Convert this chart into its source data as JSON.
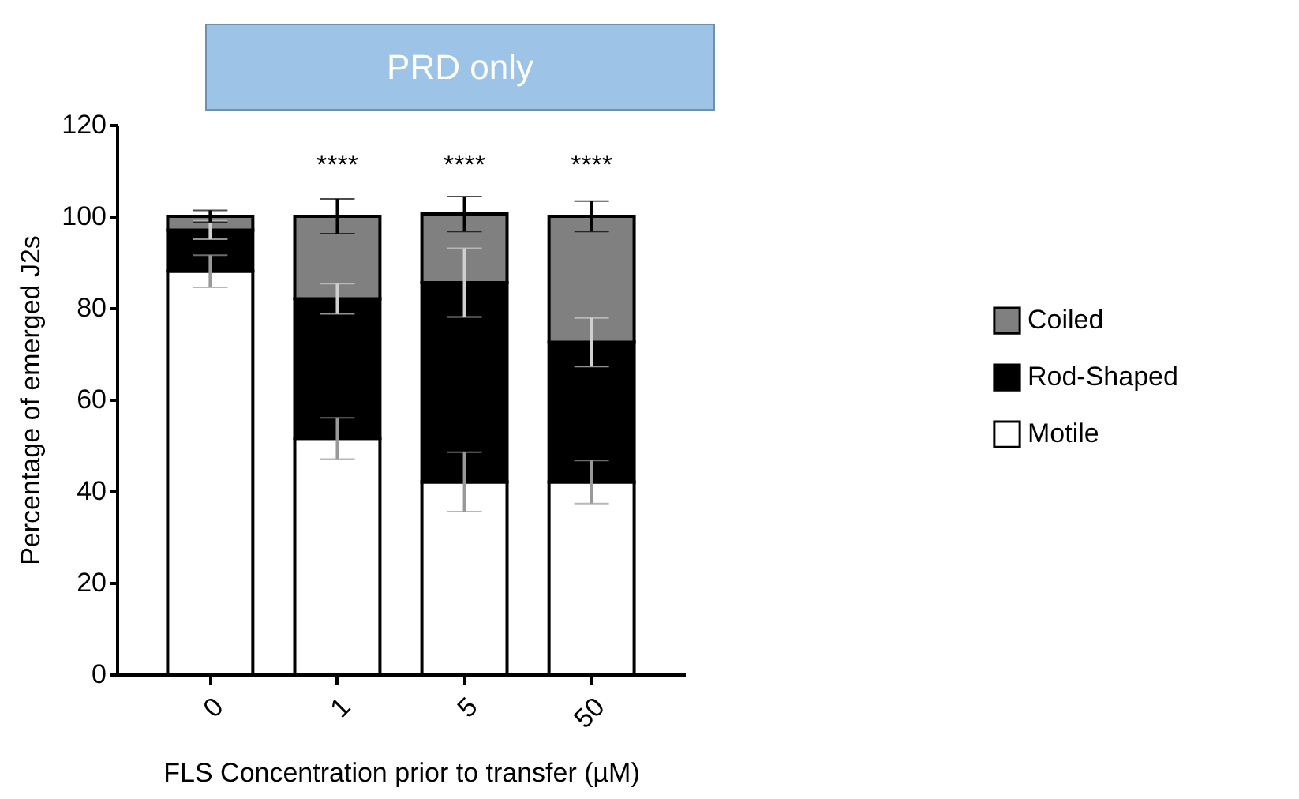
{
  "chart_data": {
    "type": "bar",
    "title": "PRD only",
    "xlabel": "FLS Concentration prior to transfer (µM)",
    "ylabel": "Percentage of emerged J2s",
    "categories": [
      "0",
      "1",
      "5",
      "50"
    ],
    "stacked": true,
    "series": [
      {
        "name": "Motile",
        "color": "#ffffff",
        "values": [
          88,
          51.5,
          42,
          42
        ],
        "errors": [
          3.5,
          4.5,
          6.5,
          4.7
        ]
      },
      {
        "name": "Rod-Shaped",
        "color": "#000000",
        "values": [
          9,
          30.5,
          43.5,
          30.5
        ],
        "errors": [
          2,
          3.3,
          7.5,
          5.3
        ]
      },
      {
        "name": "Coiled",
        "color": "#808080",
        "values": [
          3,
          18,
          15,
          27.5
        ],
        "errors": [
          1.3,
          3.8,
          3.8,
          3.3
        ]
      }
    ],
    "ylim": [
      0,
      120
    ],
    "yticks": [
      0,
      20,
      40,
      60,
      80,
      100,
      120
    ],
    "grid": false,
    "legend": "right",
    "annotations": [
      "****",
      "****",
      "****"
    ]
  }
}
